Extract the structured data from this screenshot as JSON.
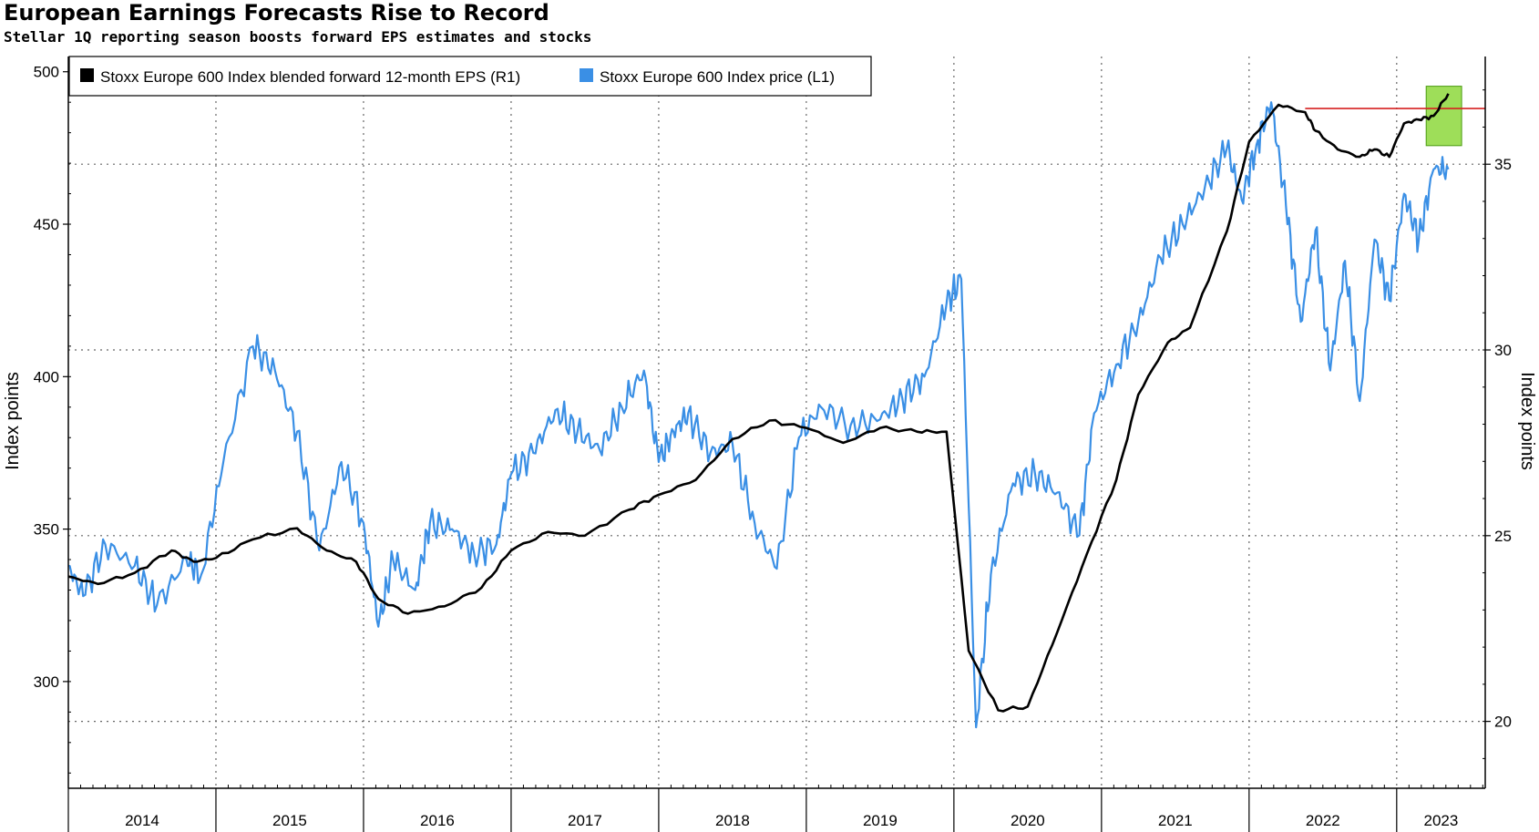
{
  "chart_data": {
    "type": "line",
    "title": "European Earnings Forecasts Rise to Record",
    "subtitle": "Stellar 1Q reporting season boosts forward EPS estimates and stocks",
    "ylabel_left": "Index points",
    "ylabel_right": "Index points",
    "ylim_left": [
      265,
      505
    ],
    "yticks_left": [
      "300",
      "350",
      "400",
      "450",
      "500"
    ],
    "ylim_right": [
      18.2,
      37.9
    ],
    "yticks_right": [
      "20",
      "25",
      "30",
      "35"
    ],
    "xlim": [
      2014.0,
      2023.6
    ],
    "xticks": [
      "2014",
      "2015",
      "2016",
      "2017",
      "2018",
      "2019",
      "2020",
      "2021",
      "2022",
      "2023"
    ],
    "grid": "dotted",
    "legend_position": "top-left",
    "colors": {
      "eps": "#000000",
      "price": "#3a8fe5",
      "record_line": "#d62020",
      "highlight": "#7ed321"
    },
    "series": [
      {
        "name": "Stoxx Europe 600 Index blended forward 12-month EPS (R1)",
        "axis": "right",
        "x": [
          2014.0,
          2014.2,
          2014.45,
          2014.7,
          2014.85,
          2015.0,
          2015.25,
          2015.55,
          2015.75,
          2015.95,
          2016.1,
          2016.3,
          2016.55,
          2016.8,
          2017.0,
          2017.25,
          2017.5,
          2017.8,
          2018.0,
          2018.25,
          2018.5,
          2018.75,
          2019.0,
          2019.25,
          2019.5,
          2019.75,
          2019.95,
          2020.1,
          2020.3,
          2020.5,
          2020.7,
          2020.9,
          2021.1,
          2021.25,
          2021.45,
          2021.6,
          2021.85,
          2022.0,
          2022.2,
          2022.38,
          2022.45,
          2022.6,
          2022.75,
          2022.85,
          2022.95,
          2023.05,
          2023.15,
          2023.25,
          2023.35
        ],
        "values": [
          23.9,
          23.7,
          24.0,
          24.6,
          24.3,
          24.4,
          24.9,
          25.2,
          24.6,
          24.3,
          23.3,
          22.9,
          23.1,
          23.6,
          24.6,
          25.1,
          25.0,
          25.7,
          26.1,
          26.5,
          27.6,
          28.1,
          27.9,
          27.5,
          27.9,
          27.8,
          27.8,
          21.9,
          20.3,
          20.4,
          22.4,
          24.5,
          26.5,
          28.8,
          30.2,
          30.6,
          33.2,
          35.6,
          36.6,
          36.4,
          35.9,
          35.4,
          35.2,
          35.4,
          35.2,
          36.1,
          36.2,
          36.3,
          36.9
        ]
      },
      {
        "name": "Stoxx Europe 600 Index price (L1)",
        "axis": "left",
        "x": [
          2014.0,
          2014.1,
          2014.25,
          2014.45,
          2014.6,
          2014.8,
          2014.9,
          2015.05,
          2015.25,
          2015.4,
          2015.55,
          2015.7,
          2015.85,
          2016.0,
          2016.1,
          2016.2,
          2016.35,
          2016.45,
          2016.6,
          2016.75,
          2016.9,
          2017.0,
          2017.15,
          2017.3,
          2017.45,
          2017.6,
          2017.75,
          2017.9,
          2018.0,
          2018.1,
          2018.2,
          2018.35,
          2018.5,
          2018.65,
          2018.8,
          2018.95,
          2019.1,
          2019.3,
          2019.5,
          2019.65,
          2019.8,
          2019.95,
          2020.05,
          2020.15,
          2020.25,
          2020.4,
          2020.55,
          2020.7,
          2020.85,
          2020.95,
          2021.1,
          2021.25,
          2021.4,
          2021.55,
          2021.7,
          2021.85,
          2021.95,
          2022.05,
          2022.15,
          2022.25,
          2022.35,
          2022.45,
          2022.55,
          2022.65,
          2022.75,
          2022.85,
          2022.95,
          2023.05,
          2023.15,
          2023.25,
          2023.35
        ],
        "values": [
          338,
          328,
          345,
          338,
          325,
          340,
          335,
          372,
          410,
          402,
          382,
          343,
          372,
          352,
          318,
          340,
          330,
          352,
          350,
          342,
          345,
          368,
          375,
          389,
          382,
          376,
          390,
          402,
          372,
          382,
          388,
          375,
          378,
          352,
          337,
          380,
          390,
          384,
          386,
          393,
          400,
          424,
          432,
          285,
          335,
          365,
          368,
          362,
          348,
          388,
          404,
          418,
          439,
          450,
          462,
          475,
          458,
          476,
          490,
          456,
          418,
          448,
          402,
          438,
          392,
          445,
          425,
          460,
          445,
          468,
          468
        ]
      }
    ],
    "annotations": {
      "record_line_value": 36.5,
      "highlight_box": [
        2023.2,
        2023.44,
        35.5,
        37.1
      ]
    }
  }
}
